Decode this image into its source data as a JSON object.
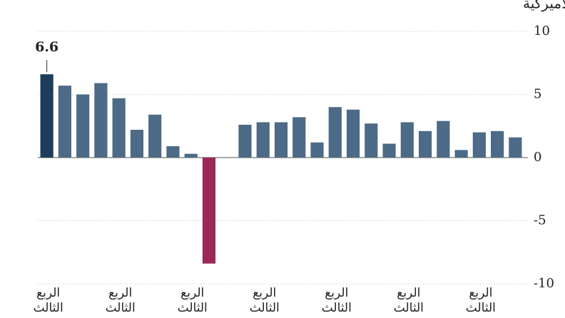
{
  "chart_data": {
    "type": "bar",
    "title": "صافي الربح حسب الفصل بمليارات الدولارات الأميركية",
    "categories": [
      "الربع الثالث",
      null,
      null,
      null,
      "الربع الثالث",
      null,
      null,
      null,
      "الربع الثالث",
      null,
      null,
      null,
      "الربع الثالث",
      null,
      null,
      null,
      "الربع الثالث",
      null,
      null,
      null,
      "الربع الثالث",
      null,
      null,
      null,
      "الربع الثالث",
      null,
      null
    ],
    "values": [
      6.6,
      5.7,
      5.0,
      5.9,
      4.7,
      2.2,
      3.4,
      0.9,
      0.3,
      -8.4,
      0,
      2.6,
      2.8,
      2.8,
      3.2,
      1.2,
      4.0,
      3.8,
      2.7,
      1.1,
      2.8,
      2.1,
      2.9,
      0.6,
      2.0,
      2.1,
      1.6
    ],
    "value_labels": [
      "6.6",
      null,
      null,
      null,
      null,
      null,
      null,
      null,
      null,
      null,
      null,
      null,
      null,
      null,
      null,
      null,
      null,
      null,
      null,
      null,
      null,
      null,
      null,
      null,
      null,
      null,
      null
    ],
    "colors": [
      "#1d3d5b",
      "#4d6a87",
      "#4d6a87",
      "#4d6a87",
      "#4d6a87",
      "#4d6a87",
      "#4d6a87",
      "#4d6a87",
      "#4d6a87",
      "#9a2956",
      "#4d6a87",
      "#4d6a87",
      "#4d6a87",
      "#4d6a87",
      "#4d6a87",
      "#4d6a87",
      "#4d6a87",
      "#4d6a87",
      "#4d6a87",
      "#4d6a87",
      "#4d6a87",
      "#4d6a87",
      "#4d6a87",
      "#4d6a87",
      "#4d6a87",
      "#4d6a87",
      "#4d6a87"
    ],
    "ylim": [
      -10,
      10
    ],
    "yticks": [
      -10,
      -5,
      0,
      5,
      10
    ],
    "grid": true,
    "y_axis_side": "right"
  }
}
